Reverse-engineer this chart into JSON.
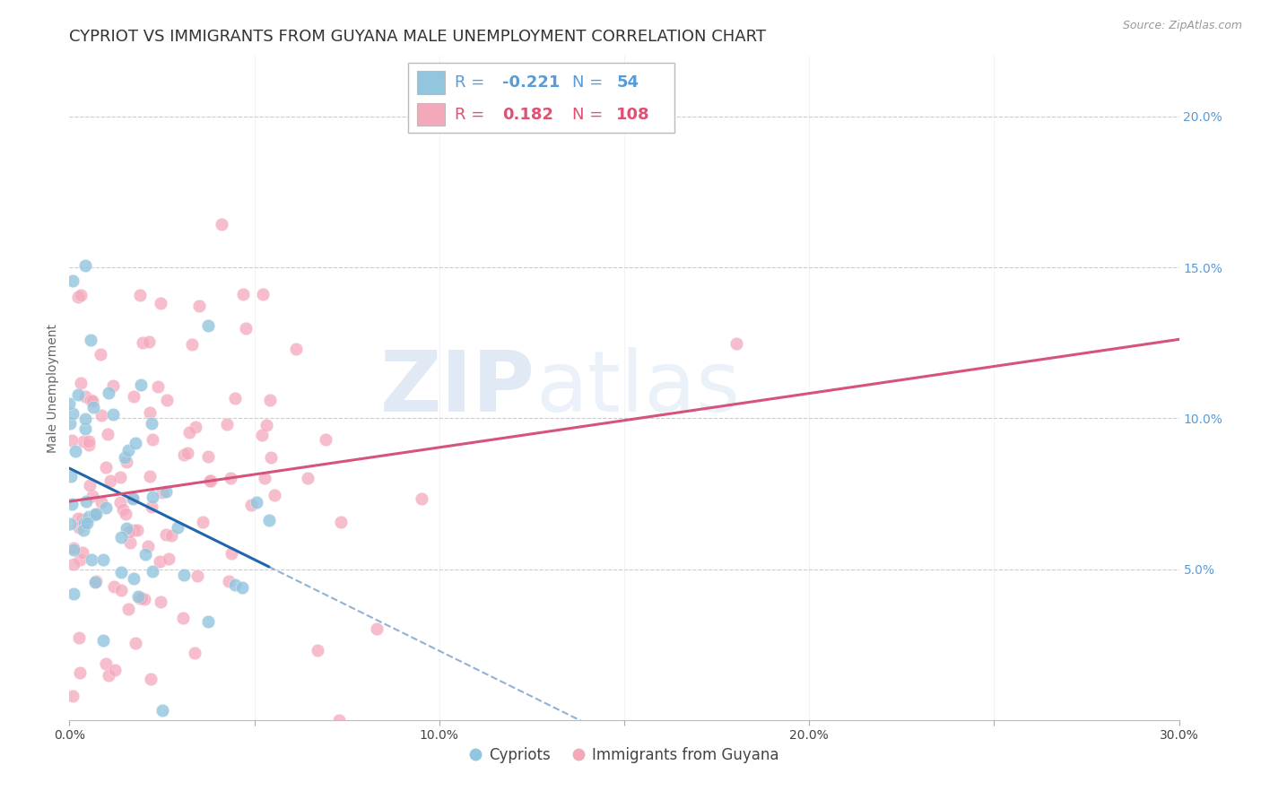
{
  "title": "CYPRIOT VS IMMIGRANTS FROM GUYANA MALE UNEMPLOYMENT CORRELATION CHART",
  "source": "Source: ZipAtlas.com",
  "ylabel": "Male Unemployment",
  "xlim": [
    0.0,
    0.3
  ],
  "ylim": [
    0.0,
    0.22
  ],
  "xticks": [
    0.0,
    0.05,
    0.1,
    0.15,
    0.2,
    0.25,
    0.3
  ],
  "xtick_labels": [
    "0.0%",
    "",
    "10.0%",
    "",
    "20.0%",
    "",
    "30.0%"
  ],
  "yticks_right": [
    0.05,
    0.1,
    0.15,
    0.2
  ],
  "ytick_labels_right": [
    "5.0%",
    "10.0%",
    "15.0%",
    "20.0%"
  ],
  "legend_labels": [
    "Cypriots",
    "Immigrants from Guyana"
  ],
  "cypriot_R": -0.221,
  "cypriot_N": 54,
  "guyana_R": 0.182,
  "guyana_N": 108,
  "blue_color": "#92c5de",
  "pink_color": "#f4a9bb",
  "blue_line_color": "#2166ac",
  "pink_line_color": "#d6547a",
  "watermark_zip": "ZIP",
  "watermark_atlas": "atlas",
  "title_fontsize": 13,
  "axis_label_fontsize": 10,
  "tick_fontsize": 10,
  "legend_fontsize": 14
}
